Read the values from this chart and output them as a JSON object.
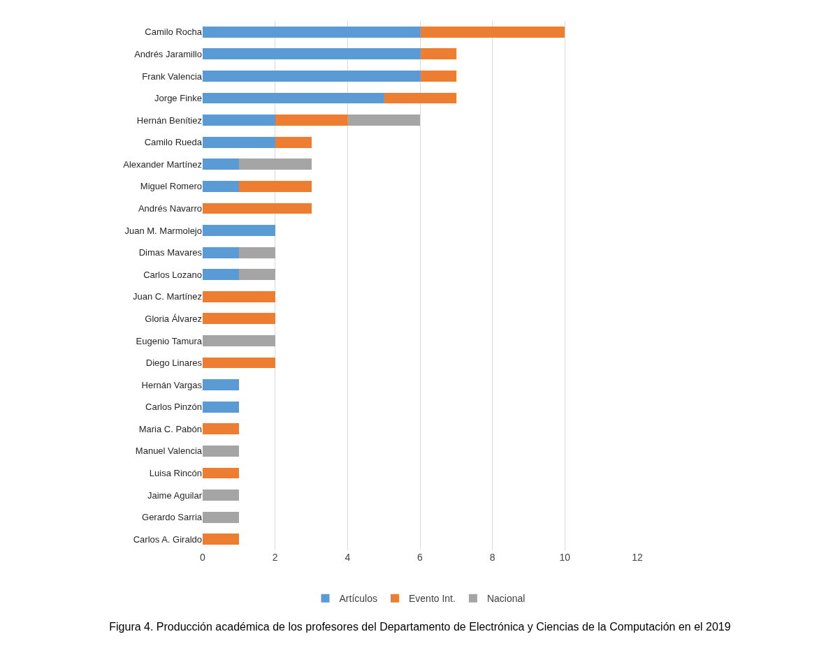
{
  "chart_data": {
    "type": "bar",
    "orientation": "horizontal",
    "stacked": true,
    "categories": [
      "Camilo Rocha",
      "Andrés Jaramillo",
      "Frank Valencia",
      "Jorge Finke",
      "Hernán Benítiez",
      "Camilo Rueda",
      "Alexander Martínez",
      "Miguel Romero",
      "Andrés Navarro",
      "Juan M. Marmolejo",
      "Dimas Mavares",
      "Carlos Lozano",
      "Juan C. Martínez",
      "Gloria Álvarez",
      "Eugenio Tamura",
      "Diego Linares",
      "Hernán Vargas",
      "Carlos Pinzón",
      "Maria C. Pabón",
      "Manuel Valencia",
      "Luisa Rincón",
      "Jaime Aguilar",
      "Gerardo Sarria",
      "Carlos A. Giraldo"
    ],
    "series": [
      {
        "name": "Artículos",
        "color": "#5b9bd5",
        "values": [
          6,
          6,
          6,
          5,
          2,
          2,
          1,
          1,
          0,
          2,
          1,
          1,
          0,
          0,
          0,
          0,
          1,
          1,
          0,
          0,
          0,
          0,
          0,
          0
        ]
      },
      {
        "name": "Evento Int.",
        "color": "#ed7d31",
        "values": [
          4,
          1,
          1,
          2,
          2,
          1,
          0,
          2,
          3,
          0,
          0,
          0,
          2,
          2,
          0,
          2,
          0,
          0,
          1,
          0,
          1,
          0,
          0,
          1
        ]
      },
      {
        "name": "Nacional",
        "color": "#a5a5a5",
        "values": [
          0,
          0,
          0,
          0,
          2,
          0,
          2,
          0,
          0,
          0,
          1,
          1,
          0,
          0,
          2,
          0,
          0,
          0,
          0,
          1,
          0,
          1,
          1,
          0
        ]
      }
    ],
    "xlim": [
      0,
      12
    ],
    "xticks": [
      0,
      2,
      4,
      6,
      8,
      10,
      12
    ],
    "grid": "x",
    "legend": "bottom",
    "annotations": [
      "Figura 4. Producción académica de los profesores del Departamento de Electrónica y Ciencias de la Computación en el 2019"
    ]
  }
}
